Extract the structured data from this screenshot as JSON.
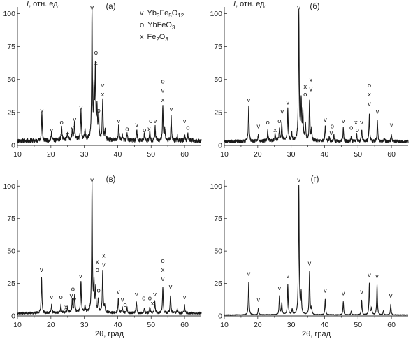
{
  "legend": [
    {
      "symbol": "v",
      "main": "Yb",
      "sub1": "3",
      "mid": "Fe",
      "sub2": "5",
      "tail": "O",
      "sub3": "12"
    },
    {
      "symbol": "o",
      "main": "YbFeO",
      "sub1": "3",
      "mid": "",
      "sub2": "",
      "tail": "",
      "sub3": ""
    },
    {
      "symbol": "x",
      "main": "Fe",
      "sub1": "2",
      "mid": "O",
      "sub2": "3",
      "tail": "",
      "sub3": ""
    }
  ],
  "chart_data": [
    {
      "type": "line",
      "panel_label": "(а)",
      "ylabel_var": "I",
      "ylabel_unit": ", отн. ед.",
      "xlabel": "",
      "xlim": [
        10,
        65
      ],
      "ylim": [
        0,
        105
      ],
      "xticks": [
        10,
        20,
        30,
        40,
        50,
        60
      ],
      "yticks": [
        0,
        25,
        50,
        75,
        100
      ],
      "baseline": 3.5,
      "noise": 1.6,
      "seed": 11,
      "peaks": [
        [
          17.3,
          21
        ],
        [
          20.2,
          6
        ],
        [
          23.2,
          10
        ],
        [
          25.0,
          5
        ],
        [
          26.4,
          8
        ],
        [
          27.1,
          13
        ],
        [
          29.0,
          21
        ],
        [
          30.2,
          6
        ],
        [
          32.3,
          98
        ],
        [
          32.9,
          34
        ],
        [
          33.3,
          52
        ],
        [
          33.8,
          23
        ],
        [
          34.3,
          18
        ],
        [
          35.5,
          31
        ],
        [
          36.2,
          7
        ],
        [
          40.3,
          12
        ],
        [
          41.4,
          4
        ],
        [
          42.8,
          6
        ],
        [
          45.7,
          8
        ],
        [
          48.0,
          6
        ],
        [
          49.6,
          7
        ],
        [
          51.2,
          10
        ],
        [
          53.5,
          27
        ],
        [
          54.1,
          9
        ],
        [
          56.0,
          18
        ],
        [
          57.8,
          4
        ],
        [
          60.0,
          5
        ],
        [
          61.0,
          6
        ]
      ],
      "markers": [
        {
          "x": 17.3,
          "y": 25,
          "text": "v"
        },
        {
          "x": 20.2,
          "y": 10,
          "text": "v"
        },
        {
          "x": 23.2,
          "y": 16,
          "text": "o"
        },
        {
          "x": 25.0,
          "y": 7,
          "text": "x"
        },
        {
          "x": 26.4,
          "y": 12,
          "text": "v"
        },
        {
          "x": 27.1,
          "y": 18,
          "text": "v"
        },
        {
          "x": 29.0,
          "y": 27,
          "text": "v"
        },
        {
          "x": 32.3,
          "y": 103,
          "text": "v"
        },
        {
          "x": 33.5,
          "y": 69,
          "text": "o"
        },
        {
          "x": 33.5,
          "y": 61,
          "text": "x"
        },
        {
          "x": 35.5,
          "y": 44,
          "text": "v"
        },
        {
          "x": 35.5,
          "y": 37,
          "text": "x"
        },
        {
          "x": 34.3,
          "y": 25,
          "text": "o"
        },
        {
          "x": 40.3,
          "y": 17,
          "text": "v"
        },
        {
          "x": 42.8,
          "y": 11,
          "text": "o"
        },
        {
          "x": 45.7,
          "y": 14,
          "text": "v"
        },
        {
          "x": 48.0,
          "y": 10,
          "text": "o"
        },
        {
          "x": 49.4,
          "y": 11,
          "text": "x"
        },
        {
          "x": 49.9,
          "y": 17,
          "text": "o"
        },
        {
          "x": 51.2,
          "y": 17,
          "text": "v"
        },
        {
          "x": 53.5,
          "y": 47,
          "text": "o"
        },
        {
          "x": 53.5,
          "y": 40,
          "text": "v"
        },
        {
          "x": 53.5,
          "y": 33,
          "text": "x"
        },
        {
          "x": 56.0,
          "y": 26,
          "text": "v"
        },
        {
          "x": 60.0,
          "y": 17,
          "text": "v"
        },
        {
          "x": 61.0,
          "y": 12,
          "text": "o"
        }
      ]
    },
    {
      "type": "line",
      "panel_label": "(б)",
      "ylabel_var": "I",
      "ylabel_unit": ", отн. ед.",
      "xlabel": "",
      "xlim": [
        10,
        65
      ],
      "ylim": [
        0,
        105
      ],
      "xticks": [
        10,
        20,
        30,
        40,
        50,
        60
      ],
      "yticks": [
        0,
        25,
        50,
        75,
        100
      ],
      "baseline": 3.0,
      "noise": 1.2,
      "seed": 23,
      "peaks": [
        [
          17.3,
          27
        ],
        [
          20.2,
          6
        ],
        [
          23.0,
          8
        ],
        [
          25.2,
          5
        ],
        [
          26.5,
          9
        ],
        [
          27.2,
          13
        ],
        [
          29.0,
          24
        ],
        [
          30.2,
          5
        ],
        [
          32.3,
          98
        ],
        [
          33.0,
          30
        ],
        [
          33.5,
          22
        ],
        [
          34.3,
          12
        ],
        [
          35.5,
          30
        ],
        [
          36.1,
          8
        ],
        [
          40.2,
          11
        ],
        [
          41.4,
          3
        ],
        [
          42.8,
          4
        ],
        [
          45.6,
          10
        ],
        [
          48.0,
          4
        ],
        [
          49.6,
          5
        ],
        [
          51.1,
          9
        ],
        [
          53.4,
          20
        ],
        [
          55.8,
          15
        ],
        [
          57.8,
          3
        ],
        [
          60.0,
          6
        ]
      ],
      "markers": [
        {
          "x": 17.3,
          "y": 33,
          "text": "v"
        },
        {
          "x": 20.2,
          "y": 13,
          "text": "v"
        },
        {
          "x": 23.0,
          "y": 16,
          "text": "o"
        },
        {
          "x": 25.2,
          "y": 10,
          "text": "x"
        },
        {
          "x": 26.5,
          "y": 17,
          "text": "o"
        },
        {
          "x": 27.3,
          "y": 24,
          "text": "v"
        },
        {
          "x": 29.0,
          "y": 31,
          "text": "v"
        },
        {
          "x": 32.3,
          "y": 103,
          "text": "v"
        },
        {
          "x": 34.2,
          "y": 43,
          "text": "x"
        },
        {
          "x": 34.2,
          "y": 37,
          "text": "o"
        },
        {
          "x": 35.9,
          "y": 48,
          "text": "x"
        },
        {
          "x": 35.9,
          "y": 41,
          "text": "v"
        },
        {
          "x": 40.2,
          "y": 18,
          "text": "v"
        },
        {
          "x": 42.3,
          "y": 13,
          "text": "o"
        },
        {
          "x": 42.0,
          "y": 8,
          "text": "v"
        },
        {
          "x": 45.6,
          "y": 17,
          "text": "v"
        },
        {
          "x": 48.0,
          "y": 12,
          "text": "o"
        },
        {
          "x": 49.4,
          "y": 16,
          "text": "x"
        },
        {
          "x": 49.8,
          "y": 10,
          "text": "o"
        },
        {
          "x": 51.1,
          "y": 16,
          "text": "v"
        },
        {
          "x": 53.4,
          "y": 44,
          "text": "o"
        },
        {
          "x": 53.4,
          "y": 37,
          "text": "x"
        },
        {
          "x": 53.4,
          "y": 30,
          "text": "v"
        },
        {
          "x": 55.8,
          "y": 24,
          "text": "v"
        },
        {
          "x": 60.0,
          "y": 14,
          "text": "v"
        }
      ]
    },
    {
      "type": "line",
      "panel_label": "(в)",
      "ylabel_var": "",
      "ylabel_unit": "",
      "xlabel": "2θ, град",
      "xlim": [
        10,
        65
      ],
      "ylim": [
        0,
        105
      ],
      "xticks": [
        10,
        20,
        30,
        40,
        50,
        60
      ],
      "yticks": [
        0,
        25,
        50,
        75,
        100
      ],
      "baseline": 2.2,
      "noise": 0.9,
      "seed": 37,
      "peaks": [
        [
          17.2,
          28
        ],
        [
          20.2,
          6
        ],
        [
          23.0,
          6
        ],
        [
          25.0,
          4
        ],
        [
          26.4,
          10
        ],
        [
          27.1,
          14
        ],
        [
          29.0,
          24
        ],
        [
          30.2,
          5
        ],
        [
          32.3,
          98
        ],
        [
          32.9,
          22
        ],
        [
          33.4,
          18
        ],
        [
          34.2,
          10
        ],
        [
          35.5,
          32
        ],
        [
          36.1,
          6
        ],
        [
          40.2,
          11
        ],
        [
          41.4,
          4
        ],
        [
          42.8,
          4
        ],
        [
          45.6,
          9
        ],
        [
          48.0,
          4
        ],
        [
          49.6,
          5
        ],
        [
          51.1,
          9
        ],
        [
          53.5,
          20
        ],
        [
          55.8,
          14
        ],
        [
          57.8,
          3
        ],
        [
          60.0,
          6
        ]
      ],
      "markers": [
        {
          "x": 17.2,
          "y": 34,
          "text": "v"
        },
        {
          "x": 20.2,
          "y": 13,
          "text": "v"
        },
        {
          "x": 23.0,
          "y": 13,
          "text": "o"
        },
        {
          "x": 24.5,
          "y": 5,
          "text": "x"
        },
        {
          "x": 26.1,
          "y": 14,
          "text": "v"
        },
        {
          "x": 26.6,
          "y": 19,
          "text": "o"
        },
        {
          "x": 27.1,
          "y": 11,
          "text": "v"
        },
        {
          "x": 28.9,
          "y": 29,
          "text": "v"
        },
        {
          "x": 32.3,
          "y": 103,
          "text": "v"
        },
        {
          "x": 33.9,
          "y": 40,
          "text": "x"
        },
        {
          "x": 33.9,
          "y": 34,
          "text": "o"
        },
        {
          "x": 35.8,
          "y": 45,
          "text": "x"
        },
        {
          "x": 35.8,
          "y": 38,
          "text": "v"
        },
        {
          "x": 34.3,
          "y": 18,
          "text": "o"
        },
        {
          "x": 40.2,
          "y": 17,
          "text": "v"
        },
        {
          "x": 41.4,
          "y": 11,
          "text": "v"
        },
        {
          "x": 42.2,
          "y": 7,
          "text": "o"
        },
        {
          "x": 45.6,
          "y": 15,
          "text": "v"
        },
        {
          "x": 47.8,
          "y": 12,
          "text": "o"
        },
        {
          "x": 49.6,
          "y": 12,
          "text": "o"
        },
        {
          "x": 50.4,
          "y": 8,
          "text": "x"
        },
        {
          "x": 51.1,
          "y": 15,
          "text": "v"
        },
        {
          "x": 53.5,
          "y": 41,
          "text": "o"
        },
        {
          "x": 53.5,
          "y": 34,
          "text": "x"
        },
        {
          "x": 53.5,
          "y": 27,
          "text": "v"
        },
        {
          "x": 55.8,
          "y": 21,
          "text": "v"
        },
        {
          "x": 60.0,
          "y": 13,
          "text": "v"
        }
      ]
    },
    {
      "type": "line",
      "panel_label": "(г)",
      "ylabel_var": "",
      "ylabel_unit": "",
      "xlabel": "2θ, град",
      "xlim": [
        10,
        65
      ],
      "ylim": [
        0,
        105
      ],
      "xticks": [
        10,
        20,
        30,
        40,
        50,
        60
      ],
      "yticks": [
        0,
        25,
        50,
        75,
        100
      ],
      "baseline": 0.8,
      "noise": 0.25,
      "seed": 53,
      "peaks": [
        [
          17.3,
          25
        ],
        [
          20.2,
          5
        ],
        [
          26.5,
          14
        ],
        [
          27.2,
          9
        ],
        [
          29.0,
          23
        ],
        [
          30.3,
          4
        ],
        [
          32.3,
          99
        ],
        [
          33.0,
          16
        ],
        [
          35.5,
          33
        ],
        [
          36.1,
          5
        ],
        [
          40.2,
          12
        ],
        [
          45.6,
          10
        ],
        [
          48.0,
          3
        ],
        [
          51.1,
          11
        ],
        [
          53.4,
          24
        ],
        [
          54.1,
          5
        ],
        [
          55.7,
          23
        ],
        [
          57.6,
          3
        ],
        [
          59.8,
          8
        ]
      ],
      "markers": [
        {
          "x": 17.3,
          "y": 31,
          "text": "v"
        },
        {
          "x": 20.2,
          "y": 11,
          "text": "v"
        },
        {
          "x": 26.5,
          "y": 20,
          "text": "v"
        },
        {
          "x": 29.0,
          "y": 29,
          "text": "v"
        },
        {
          "x": 32.3,
          "y": 103,
          "text": "v"
        },
        {
          "x": 35.5,
          "y": 39,
          "text": "v"
        },
        {
          "x": 40.2,
          "y": 18,
          "text": "v"
        },
        {
          "x": 45.6,
          "y": 16,
          "text": "v"
        },
        {
          "x": 51.1,
          "y": 17,
          "text": "v"
        },
        {
          "x": 53.4,
          "y": 30,
          "text": "v"
        },
        {
          "x": 55.7,
          "y": 29,
          "text": "v"
        },
        {
          "x": 59.8,
          "y": 14,
          "text": "v"
        }
      ]
    }
  ]
}
